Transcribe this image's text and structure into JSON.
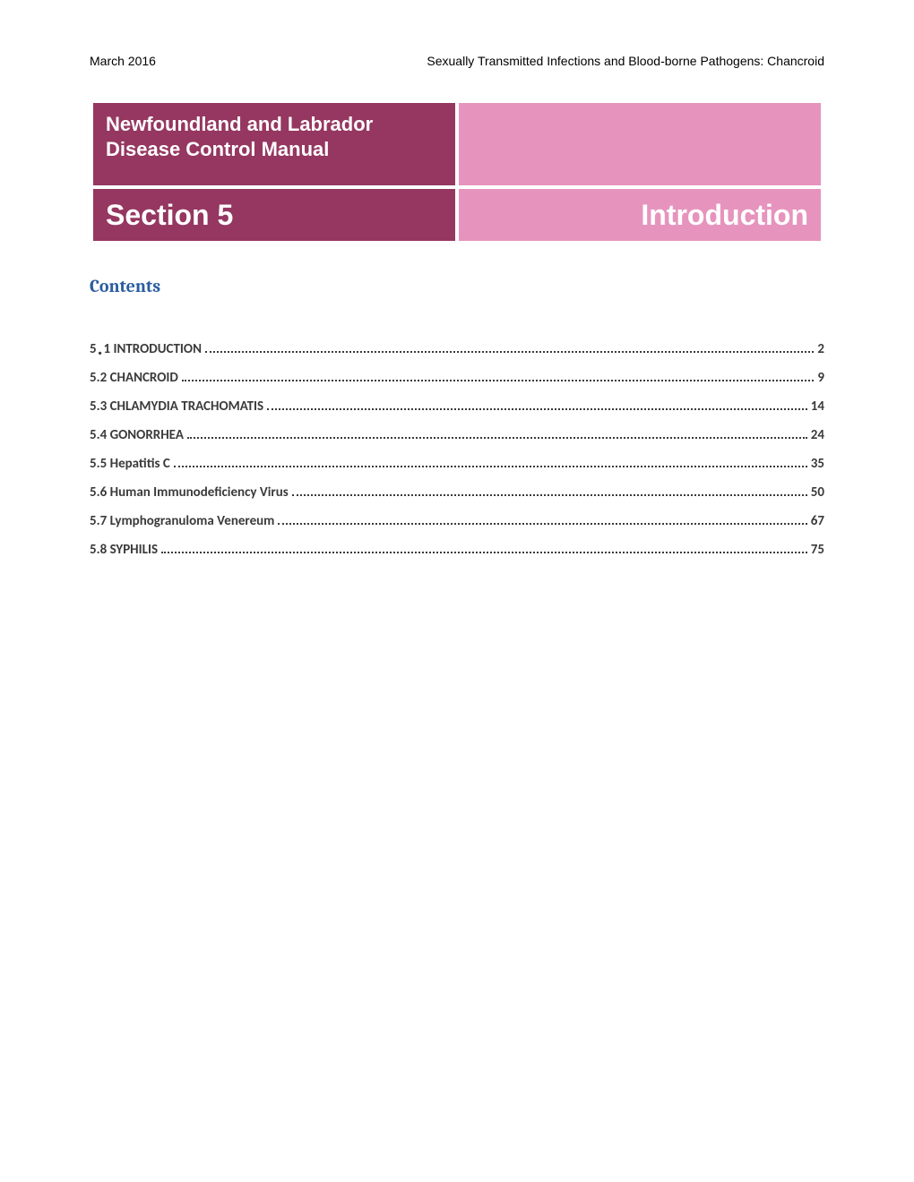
{
  "header": {
    "date": "March 2016",
    "doc_title": "Sexually Transmitted Infections and Blood-borne Pathogens: Chancroid"
  },
  "title_block": {
    "manual_title": "Newfoundland and Labrador Disease Control Manual",
    "section_label": "Section 5",
    "section_name": "Introduction",
    "colors": {
      "dark_bg": "#953760",
      "light_bg": "#e694bd",
      "text": "#ffffff"
    }
  },
  "contents_heading": "Contents",
  "contents_heading_color": "#2a5da0",
  "toc": [
    {
      "prefix": "5",
      "dot": ".",
      "rest": "1 INTRODUCTION",
      "page": "2",
      "big_dot": true
    },
    {
      "label": "5.2 CHANCROID",
      "page": "9"
    },
    {
      "label": "5.3 CHLAMYDIA TRACHOMATIS",
      "page": "14"
    },
    {
      "label": "5.4 GONORRHEA   ",
      "page": "24"
    },
    {
      "label": "5.5 Hepatitis C",
      "page": "35"
    },
    {
      "label": "5.6 Human Immunodeficiency Virus",
      "page": "50"
    },
    {
      "label": "5.7 Lymphogranuloma Venereum",
      "page": "67"
    },
    {
      "label": "5.8 SYPHILIS",
      "page": "75"
    }
  ],
  "fonts": {
    "body": "Verdana",
    "titles": "Arial",
    "contents_heading": "Cambria",
    "toc": "Calibri"
  }
}
